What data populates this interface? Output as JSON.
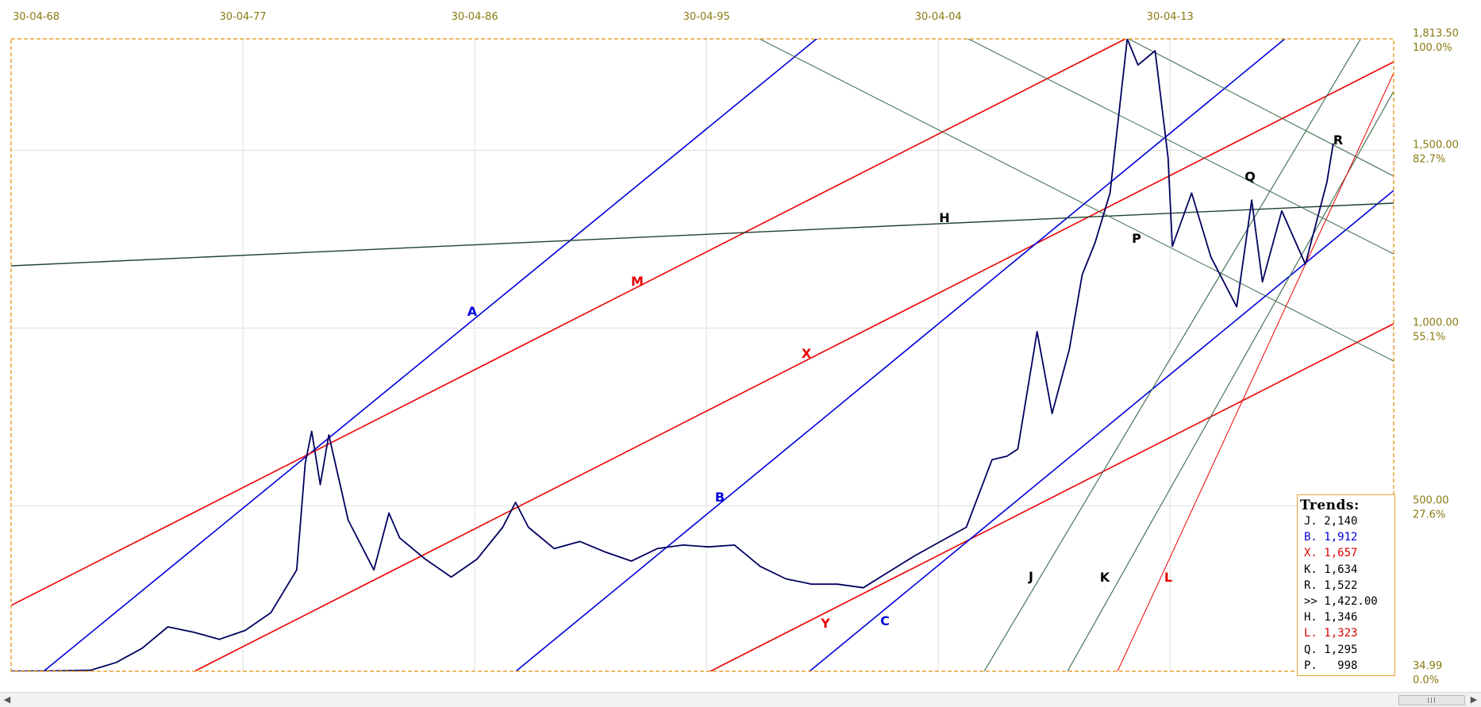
{
  "chart_data": {
    "type": "line",
    "x_tick_labels": [
      "30-04-68",
      "30-04-77",
      "30-04-86",
      "30-04-95",
      "30-04-04",
      "30-04-13"
    ],
    "y_tick_labels": [
      {
        "value": "1,813.50",
        "pct": "100.0%"
      },
      {
        "value": "1,500.00",
        "pct": "82.7%"
      },
      {
        "value": "1,000.00",
        "pct": "55.1%"
      },
      {
        "value": "500.00",
        "pct": "27.6%"
      },
      {
        "value": "34.99",
        "pct": "0.0%"
      }
    ],
    "ylim": [
      34.99,
      1813.5
    ],
    "grid": true,
    "series": [
      {
        "color": "#000060",
        "points": [
          [
            "1968-01",
            35
          ],
          [
            "1970-01",
            36
          ],
          [
            "1971-06",
            38
          ],
          [
            "1972-06",
            60
          ],
          [
            "1973-06",
            100
          ],
          [
            "1974-06",
            160
          ],
          [
            "1975-06",
            145
          ],
          [
            "1976-06",
            125
          ],
          [
            "1977-06",
            150
          ],
          [
            "1978-06",
            200
          ],
          [
            "1979-06",
            320
          ],
          [
            "1979-10",
            620
          ],
          [
            "1980-01",
            710
          ],
          [
            "1980-05",
            560
          ],
          [
            "1980-09",
            700
          ],
          [
            "1981-06",
            460
          ],
          [
            "1982-06",
            320
          ],
          [
            "1983-01",
            480
          ],
          [
            "1983-06",
            410
          ],
          [
            "1984-06",
            350
          ],
          [
            "1985-06",
            300
          ],
          [
            "1986-06",
            350
          ],
          [
            "1987-06",
            440
          ],
          [
            "1987-12",
            510
          ],
          [
            "1988-06",
            440
          ],
          [
            "1989-06",
            380
          ],
          [
            "1990-06",
            400
          ],
          [
            "1991-06",
            370
          ],
          [
            "1992-06",
            345
          ],
          [
            "1993-06",
            380
          ],
          [
            "1994-06",
            390
          ],
          [
            "1995-06",
            385
          ],
          [
            "1996-06",
            390
          ],
          [
            "1997-06",
            330
          ],
          [
            "1998-06",
            295
          ],
          [
            "1999-06",
            280
          ],
          [
            "2000-06",
            280
          ],
          [
            "2001-06",
            270
          ],
          [
            "2002-06",
            315
          ],
          [
            "2003-06",
            360
          ],
          [
            "2004-06",
            400
          ],
          [
            "2005-06",
            440
          ],
          [
            "2006-06",
            630
          ],
          [
            "2007-01",
            640
          ],
          [
            "2007-06",
            660
          ],
          [
            "2008-03",
            990
          ],
          [
            "2008-10",
            760
          ],
          [
            "2009-06",
            940
          ],
          [
            "2009-12",
            1150
          ],
          [
            "2010-06",
            1240
          ],
          [
            "2011-01",
            1380
          ],
          [
            "2011-09",
            1850
          ],
          [
            "2012-02",
            1740
          ],
          [
            "2012-10",
            1780
          ],
          [
            "2013-04",
            1480
          ],
          [
            "2013-06",
            1230
          ],
          [
            "2014-03",
            1380
          ],
          [
            "2014-12",
            1200
          ],
          [
            "2015-12",
            1060
          ],
          [
            "2016-07",
            1360
          ],
          [
            "2016-12",
            1130
          ],
          [
            "2017-09",
            1330
          ],
          [
            "2018-08",
            1180
          ],
          [
            "2019-06",
            1410
          ],
          [
            "2019-09",
            1520
          ]
        ]
      }
    ],
    "trendline_labels": [
      "A",
      "M",
      "X",
      "B",
      "Y",
      "C",
      "H",
      "J",
      "K",
      "L",
      "P",
      "Q",
      "R"
    ],
    "trends_box": {
      "title": "Trends:",
      "rows": [
        {
          "key": "J.",
          "value": "2,140",
          "color": "#000000"
        },
        {
          "key": "B.",
          "value": "1,912",
          "color": "#0000dd"
        },
        {
          "key": "X.",
          "value": "1,657",
          "color": "#dd0000"
        },
        {
          "key": "K.",
          "value": "1,634",
          "color": "#000000"
        },
        {
          "key": "R.",
          "value": "1,522",
          "color": "#000000"
        },
        {
          "key": ">>",
          "value": "1,422.00",
          "color": "#000000"
        },
        {
          "key": "H.",
          "value": "1,346",
          "color": "#000000"
        },
        {
          "key": "L.",
          "value": "1,323",
          "color": "#dd0000"
        },
        {
          "key": "Q.",
          "value": "1,295",
          "color": "#000000"
        },
        {
          "key": "P.",
          "value": "  998",
          "color": "#000000"
        }
      ]
    },
    "colors": {
      "price": "#000060",
      "blue": "#0000dd",
      "red": "#ee0000",
      "green": "#1f4030",
      "tick_text": "#8a7a10",
      "frame": "#e8a030"
    }
  }
}
